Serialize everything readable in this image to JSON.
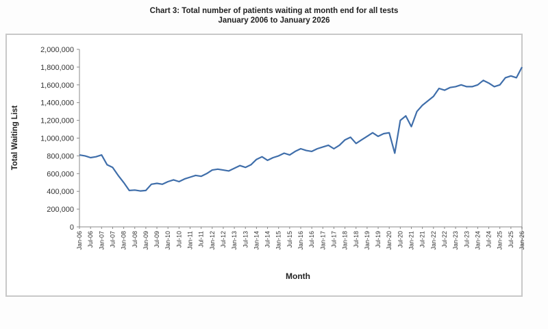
{
  "chart_data": {
    "type": "line",
    "title": "Chart 3: Total number of patients waiting at month end for all tests",
    "subtitle": "January 2006 to January 2026",
    "xlabel": "Month",
    "ylabel": "Total Waiting List",
    "ylim": [
      0,
      2000000
    ],
    "y_ticks": [
      "0",
      "200,000",
      "400,000",
      "600,000",
      "800,000",
      "1,000,000",
      "1,200,000",
      "1,400,000",
      "1,600,000",
      "1,800,000",
      "2,000,000"
    ],
    "x_ticks": [
      "Jan-06",
      "Jul-06",
      "Jan-07",
      "Jul-07",
      "Jan-08",
      "Jul-08",
      "Jan-09",
      "Jul-09",
      "Jan-10",
      "Jul-10",
      "Jan-11",
      "Jul-11",
      "Jan-12",
      "Jul-12",
      "Jan-13",
      "Jul-13",
      "Jan-14",
      "Jul-14",
      "Jan-15",
      "Jul-15",
      "Jan-16",
      "Jul-16",
      "Jan-17",
      "Jul-17",
      "Jan-18",
      "Jul-18",
      "Jan-19",
      "Jul-19",
      "Jan-20",
      "Jul-20",
      "Jan-21",
      "Jul-21",
      "Jan-22",
      "Jul-22",
      "Jan-23",
      "Jul-23",
      "Jan-24",
      "Jul-24",
      "Jan-25",
      "Jul-25",
      "Jan-26"
    ],
    "grid": false,
    "legend": null,
    "series": [
      {
        "name": "Total Waiting List",
        "color": "#3f6eaa",
        "x": [
          "Jan-06",
          "Apr-06",
          "Jul-06",
          "Oct-06",
          "Jan-07",
          "Apr-07",
          "Jul-07",
          "Oct-07",
          "Jan-08",
          "Apr-08",
          "Jul-08",
          "Oct-08",
          "Jan-09",
          "Apr-09",
          "Jul-09",
          "Oct-09",
          "Jan-10",
          "Apr-10",
          "Jul-10",
          "Oct-10",
          "Jan-11",
          "Apr-11",
          "Jul-11",
          "Oct-11",
          "Jan-12",
          "Apr-12",
          "Jul-12",
          "Oct-12",
          "Jan-13",
          "Apr-13",
          "Jul-13",
          "Oct-13",
          "Jan-14",
          "Apr-14",
          "Jul-14",
          "Oct-14",
          "Jan-15",
          "Apr-15",
          "Jul-15",
          "Oct-15",
          "Jan-16",
          "Apr-16",
          "Jul-16",
          "Oct-16",
          "Jan-17",
          "Apr-17",
          "Jul-17",
          "Oct-17",
          "Jan-18",
          "Apr-18",
          "Jul-18",
          "Oct-18",
          "Jan-19",
          "Apr-19",
          "Jul-19",
          "Oct-19",
          "Jan-20",
          "Apr-20",
          "Jul-20",
          "Oct-20",
          "Jan-21",
          "Apr-21",
          "Jul-21",
          "Oct-21",
          "Jan-22",
          "Apr-22",
          "Jul-22",
          "Oct-22",
          "Jan-23",
          "Apr-23",
          "Jul-23",
          "Oct-23",
          "Jan-24",
          "Apr-24",
          "Jul-24",
          "Oct-24",
          "Jan-25",
          "Apr-25",
          "Jul-25",
          "Oct-25",
          "Jan-26"
        ],
        "values": [
          810000,
          800000,
          780000,
          790000,
          810000,
          700000,
          670000,
          580000,
          500000,
          410000,
          415000,
          405000,
          410000,
          480000,
          490000,
          480000,
          510000,
          530000,
          510000,
          540000,
          560000,
          580000,
          570000,
          600000,
          640000,
          650000,
          640000,
          630000,
          660000,
          690000,
          670000,
          700000,
          760000,
          790000,
          750000,
          780000,
          800000,
          830000,
          810000,
          850000,
          880000,
          860000,
          850000,
          880000,
          900000,
          920000,
          880000,
          920000,
          980000,
          1010000,
          940000,
          980000,
          1020000,
          1060000,
          1020000,
          1050000,
          1060000,
          830000,
          1200000,
          1250000,
          1130000,
          1300000,
          1370000,
          1420000,
          1470000,
          1560000,
          1540000,
          1570000,
          1580000,
          1600000,
          1580000,
          1580000,
          1600000,
          1650000,
          1620000,
          1580000,
          1600000,
          1680000,
          1700000,
          1680000,
          1800000
        ]
      }
    ]
  }
}
